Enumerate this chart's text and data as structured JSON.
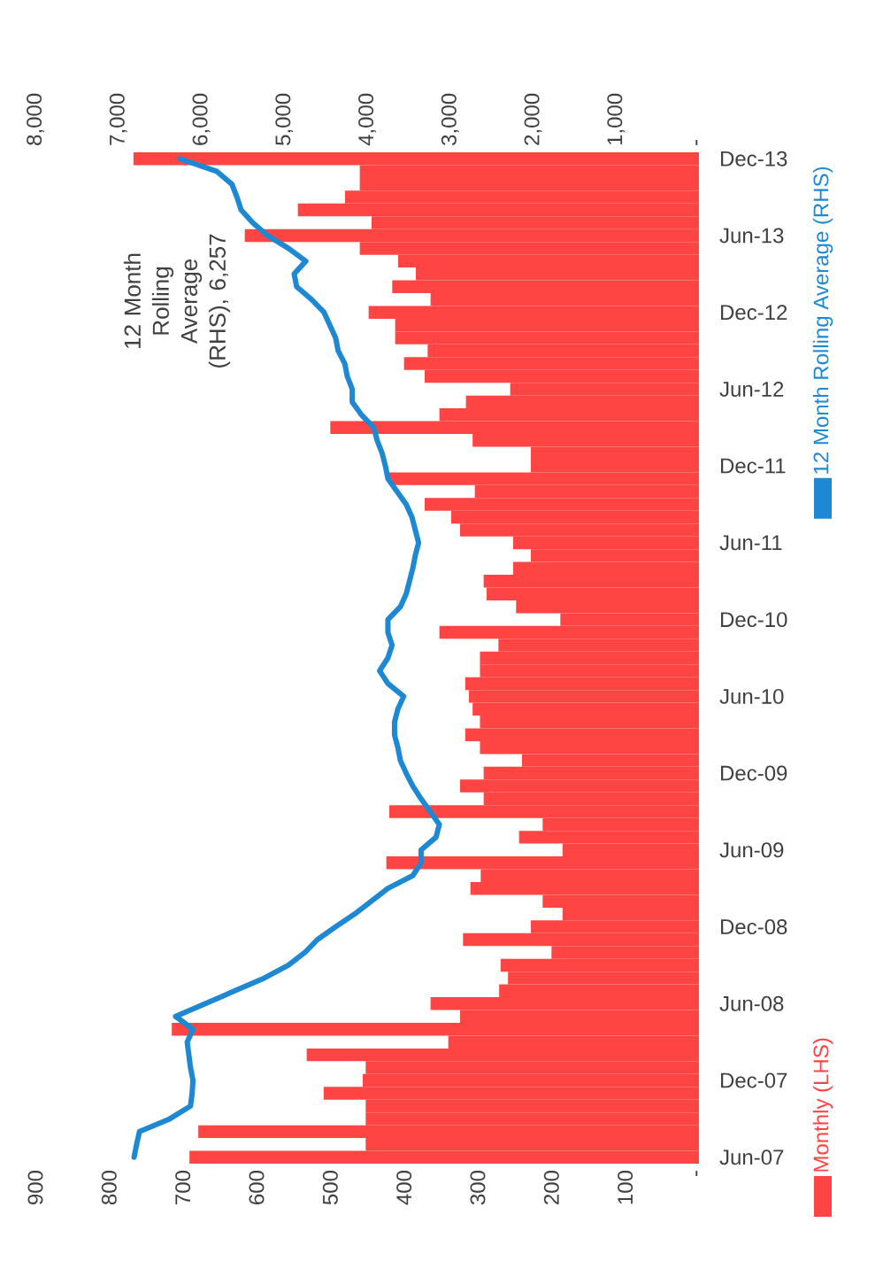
{
  "chart_data": {
    "type": "bar",
    "orientation": "horizontal",
    "categories": [
      "Dec-13",
      null,
      null,
      null,
      null,
      null,
      "Jun-13",
      null,
      null,
      null,
      null,
      null,
      "Dec-12",
      null,
      null,
      null,
      null,
      null,
      "Jun-12",
      null,
      null,
      null,
      null,
      null,
      "Dec-11",
      null,
      null,
      null,
      null,
      null,
      "Jun-11",
      null,
      null,
      null,
      null,
      null,
      "Dec-10",
      null,
      null,
      null,
      null,
      null,
      "Jun-10",
      null,
      null,
      null,
      null,
      null,
      "Dec-09",
      null,
      null,
      null,
      null,
      null,
      "Jun-09",
      null,
      null,
      null,
      null,
      null,
      "Dec-08",
      null,
      null,
      null,
      null,
      null,
      "Jun-08",
      null,
      null,
      null,
      null,
      null,
      "Dec-07",
      null,
      null,
      null,
      null,
      null,
      "Jun-07"
    ],
    "series": [
      {
        "name": "Monthly (LHS)",
        "color": "#ff4444",
        "values": [
          767,
          460,
          460,
          480,
          544,
          444,
          616,
          460,
          408,
          384,
          416,
          364,
          448,
          412,
          412,
          368,
          400,
          372,
          256,
          316,
          352,
          500,
          307,
          228,
          228,
          420,
          304,
          372,
          336,
          324,
          252,
          228,
          252,
          292,
          288,
          248,
          188,
          352,
          272,
          297,
          297,
          317,
          312,
          307,
          297,
          317,
          297,
          240,
          292,
          324,
          292,
          420,
          212,
          244,
          185,
          424,
          296,
          310,
          212,
          185,
          228,
          320,
          200,
          269,
          259,
          271,
          364,
          324,
          715,
          340,
          532,
          452,
          456,
          509,
          452,
          452,
          679,
          452,
          691
        ]
      },
      {
        "name": "12 Month Rolling Average (RHS)",
        "type": "line",
        "axis": "x2",
        "color": "#1e88d2",
        "values": [
          6257,
          5810,
          5630,
          5570,
          5520,
          5380,
          5200,
          4950,
          4740,
          4880,
          4850,
          4670,
          4520,
          4450,
          4380,
          4350,
          4270,
          4240,
          4180,
          4180,
          4070,
          3920,
          3880,
          3820,
          3780,
          3750,
          3640,
          3530,
          3460,
          3420,
          3380,
          3420,
          3450,
          3490,
          3530,
          3600,
          3750,
          3750,
          3700,
          3750,
          3850,
          3750,
          3560,
          3630,
          3670,
          3670,
          3630,
          3600,
          3530,
          3450,
          3350,
          3240,
          3130,
          3170,
          3350,
          3350,
          3450,
          3750,
          3950,
          4150,
          4380,
          4600,
          4750,
          4950,
          5240,
          5595,
          5950,
          6310,
          6100,
          6170,
          6150,
          6130,
          6100,
          6110,
          6130,
          6380,
          6745,
          6780,
          6810
        ]
      }
    ],
    "xlim": [
      900,
      0
    ],
    "xticks": [
      900,
      800,
      700,
      600,
      500,
      400,
      300,
      200,
      100,
      {
        "value": 0,
        "label": "-"
      }
    ],
    "x2lim": [
      8000,
      0
    ],
    "x2ticks": [
      {
        "value": 8000,
        "label": "8,000"
      },
      {
        "value": 7000,
        "label": "7,000"
      },
      {
        "value": 6000,
        "label": "6,000"
      },
      {
        "value": 5000,
        "label": "5,000"
      },
      {
        "value": 4000,
        "label": "4,000"
      },
      {
        "value": 3000,
        "label": "3,000"
      },
      {
        "value": 2000,
        "label": "2,000"
      },
      {
        "value": 1000,
        "label": "1,000"
      },
      {
        "value": 0,
        "label": "-"
      }
    ],
    "annotations": [
      "12 Month Rolling Average (RHS), 6,257"
    ],
    "legend": "right"
  }
}
